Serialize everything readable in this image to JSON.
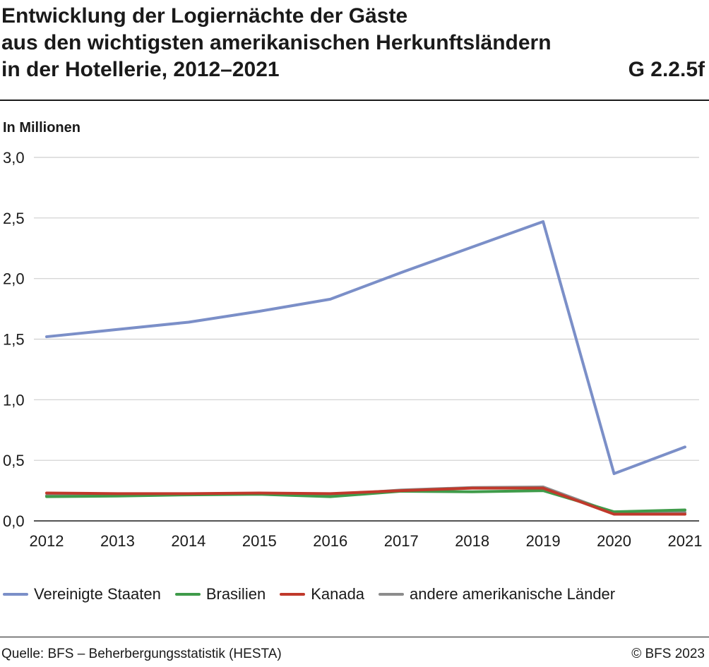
{
  "header": {
    "title_lines": [
      "Entwicklung der Logiernächte der Gäste",
      "aus den wichtigsten amerikanischen Herkunftsländern",
      "in der Hotellerie, 2012–2021"
    ],
    "code": "G 2.2.5f",
    "unit": "In Millionen"
  },
  "footer": {
    "source": "Quelle: BFS – Beherbergungsstatistik (HESTA)",
    "copyright": "© BFS 2023"
  },
  "chart_data": {
    "type": "line",
    "title": "Entwicklung der Logiernächte der Gäste aus den wichtigsten amerikanischen Herkunftsländern in der Hotellerie, 2012–2021",
    "ylabel": "In Millionen",
    "xlabel": "",
    "x": [
      "2012",
      "2013",
      "2014",
      "2015",
      "2016",
      "2017",
      "2018",
      "2019",
      "2020",
      "2021"
    ],
    "ylim": [
      0,
      3.0
    ],
    "yticks": [
      "0,0",
      "0,5",
      "1,0",
      "1,5",
      "2,0",
      "2,5",
      "3,0"
    ],
    "ytick_values": [
      0,
      0.5,
      1.0,
      1.5,
      2.0,
      2.5,
      3.0
    ],
    "grid": "horizontal",
    "legend_position": "bottom",
    "series": [
      {
        "name": "Vereinigte Staaten",
        "color": "#7b8fc8",
        "values": [
          1.52,
          1.58,
          1.64,
          1.73,
          1.83,
          2.05,
          2.26,
          2.47,
          0.39,
          0.61
        ]
      },
      {
        "name": "Brasilien",
        "color": "#3f9b4a",
        "values": [
          0.2,
          0.205,
          0.215,
          0.22,
          0.2,
          0.245,
          0.24,
          0.25,
          0.075,
          0.09
        ]
      },
      {
        "name": "Kanada",
        "color": "#c0392b",
        "values": [
          0.23,
          0.225,
          0.225,
          0.23,
          0.225,
          0.25,
          0.27,
          0.27,
          0.055,
          0.055
        ]
      },
      {
        "name": "andere amerikanische Länder",
        "color": "#8c8c8c",
        "values": [
          0.21,
          0.215,
          0.22,
          0.225,
          0.215,
          0.255,
          0.275,
          0.28,
          0.065,
          0.07
        ]
      }
    ]
  }
}
